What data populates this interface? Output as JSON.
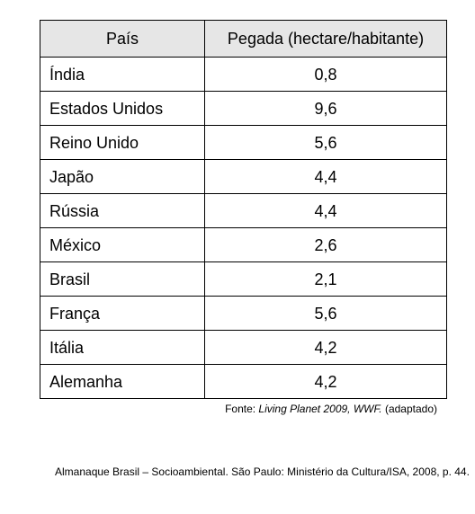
{
  "table": {
    "headers": [
      "País",
      "Pegada (hectare/habitante)"
    ],
    "rows": [
      {
        "country": "Índia",
        "value": "0,8"
      },
      {
        "country": "Estados Unidos",
        "value": "9,6"
      },
      {
        "country": "Reino Unido",
        "value": "5,6"
      },
      {
        "country": "Japão",
        "value": "4,4"
      },
      {
        "country": "Rússia",
        "value": "4,4"
      },
      {
        "country": "México",
        "value": "2,6"
      },
      {
        "country": "Brasil",
        "value": "2,1"
      },
      {
        "country": "França",
        "value": "5,6"
      },
      {
        "country": "Itália",
        "value": "4,2"
      },
      {
        "country": "Alemanha",
        "value": "4,2"
      }
    ]
  },
  "source": {
    "prefix": "Fonte: ",
    "work": "Living Planet 2009, WWF.",
    "suffix": " (adaptado)"
  },
  "citation": "Almanaque Brasil – Socioambiental. São Paulo: Ministério da Cultura/ISA, 2008, p. 44."
}
